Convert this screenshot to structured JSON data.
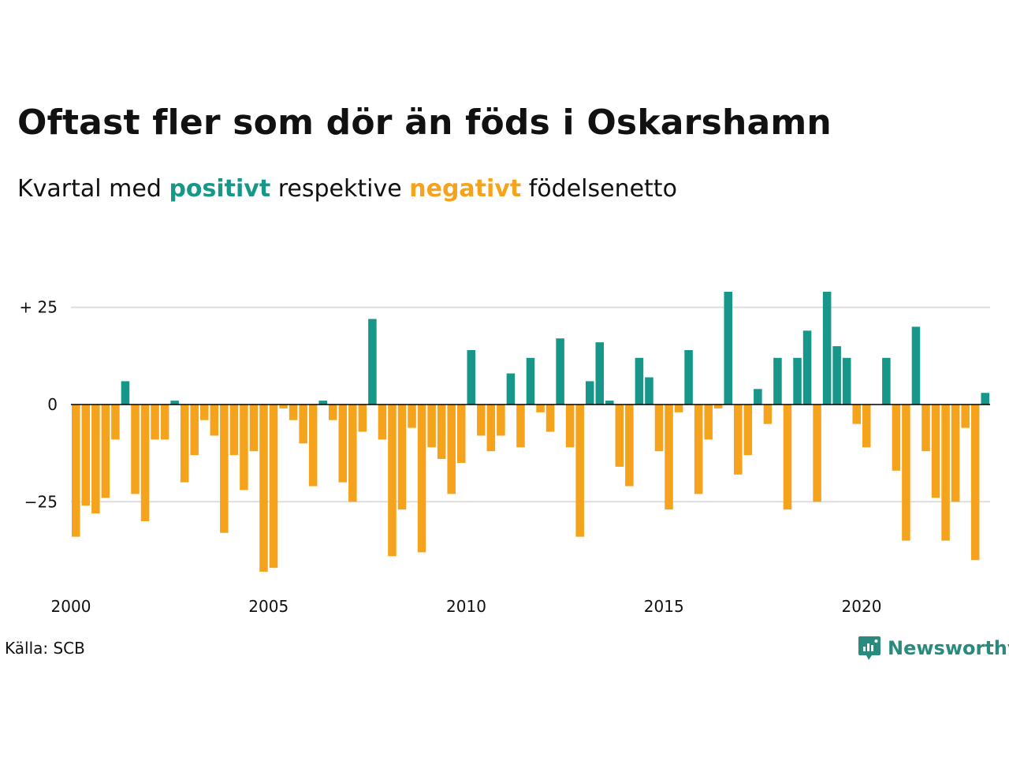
{
  "title": "Oftast fler som dör än föds i Oskarshamn",
  "subtitle": {
    "pre": "Kvartal med",
    "positive_word": "positivt",
    "mid": "respektive",
    "negative_word": "negativt",
    "post": "födelsenetto"
  },
  "source": "Källa: SCB",
  "brand": {
    "name": "Newsworthy",
    "icon": "newsworthy-logo-icon"
  },
  "colors": {
    "positive": "#16978a",
    "negative": "#f5a31c",
    "grid": "#dddddd",
    "baseline": "#000000"
  },
  "chart_data": {
    "type": "bar",
    "x_start": "2000 Q1",
    "x_ticks": [
      "2000",
      "2005",
      "2010",
      "2015",
      "2020"
    ],
    "y_ticks": [
      "+ 25",
      "0",
      "−25"
    ],
    "y_tick_values": [
      25,
      0,
      -25
    ],
    "ylim": [
      -44,
      29
    ],
    "grid": "horizontal",
    "values": [
      -34,
      -26,
      -28,
      -24,
      -9,
      6,
      -23,
      -30,
      -9,
      -9,
      1,
      -20,
      -13,
      -4,
      -8,
      -33,
      -13,
      -22,
      -12,
      -43,
      -42,
      -1,
      -4,
      -10,
      -21,
      1,
      -4,
      -20,
      -25,
      -7,
      22,
      -9,
      -39,
      -27,
      -6,
      -38,
      -11,
      -14,
      -23,
      -15,
      14,
      -8,
      -12,
      -8,
      8,
      -11,
      12,
      -2,
      -7,
      17,
      -11,
      -34,
      6,
      16,
      1,
      -16,
      -21,
      12,
      7,
      -12,
      -27,
      -2,
      14,
      -23,
      -9,
      -1,
      29,
      -18,
      -13,
      4,
      -5,
      12,
      -27,
      12,
      19,
      -25,
      29,
      15,
      12,
      -5,
      -11,
      0,
      12,
      -17,
      -35,
      20,
      -12,
      -24,
      -35,
      -25,
      -6,
      -40,
      3
    ]
  }
}
